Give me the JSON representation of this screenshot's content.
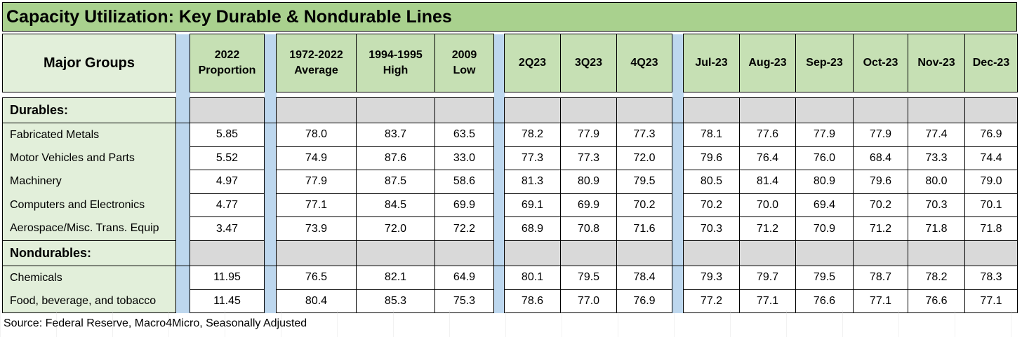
{
  "title": "Capacity Utilization: Key Durable & Nondurable Lines",
  "header": {
    "group_label": "Major Groups",
    "columns": [
      [
        "2022",
        "Proportion"
      ],
      [
        "1972-2022",
        "Average"
      ],
      [
        "1994-1995",
        "High"
      ],
      [
        "2009",
        "Low"
      ],
      [
        "2Q23"
      ],
      [
        "3Q23"
      ],
      [
        "4Q23"
      ],
      [
        "Jul-23"
      ],
      [
        "Aug-23"
      ],
      [
        "Sep-23"
      ],
      [
        "Oct-23"
      ],
      [
        "Nov-23"
      ],
      [
        "Dec-23"
      ]
    ]
  },
  "sections": [
    {
      "label": "Durables:",
      "rows": [
        {
          "name": "Fabricated Metals",
          "values": [
            "5.85",
            "78.0",
            "83.7",
            "63.5",
            "78.2",
            "77.9",
            "77.3",
            "78.1",
            "77.6",
            "77.9",
            "77.9",
            "77.4",
            "76.9"
          ]
        },
        {
          "name": "Motor Vehicles and Parts",
          "values": [
            "5.52",
            "74.9",
            "87.6",
            "33.0",
            "77.3",
            "77.3",
            "72.0",
            "79.6",
            "76.4",
            "76.0",
            "68.4",
            "73.3",
            "74.4"
          ]
        },
        {
          "name": "Machinery",
          "values": [
            "4.97",
            "77.9",
            "87.5",
            "58.6",
            "81.3",
            "80.9",
            "79.5",
            "80.5",
            "81.4",
            "80.9",
            "79.6",
            "80.0",
            "79.0"
          ]
        },
        {
          "name": "Computers and Electronics",
          "values": [
            "4.77",
            "77.1",
            "84.5",
            "69.9",
            "69.1",
            "69.9",
            "70.2",
            "70.2",
            "70.0",
            "69.4",
            "70.2",
            "70.3",
            "70.1"
          ]
        },
        {
          "name": "Aerospace/Misc. Trans. Equip",
          "values": [
            "3.47",
            "73.9",
            "72.0",
            "72.2",
            "68.9",
            "70.8",
            "71.6",
            "70.3",
            "71.2",
            "70.9",
            "71.2",
            "71.8",
            "71.8"
          ]
        }
      ]
    },
    {
      "label": "Nondurables:",
      "rows": [
        {
          "name": "Chemicals",
          "values": [
            "11.95",
            "76.5",
            "82.1",
            "64.9",
            "80.1",
            "79.5",
            "78.4",
            "79.3",
            "79.7",
            "79.5",
            "78.7",
            "78.2",
            "78.3"
          ]
        },
        {
          "name": "Food, beverage, and tobacco",
          "values": [
            "11.45",
            "80.4",
            "85.3",
            "75.3",
            "78.6",
            "77.0",
            "76.9",
            "77.2",
            "77.1",
            "76.6",
            "77.1",
            "76.6",
            "77.1"
          ]
        }
      ]
    }
  ],
  "source": "Source: Federal Reserve, Macro4Micro, Seasonally Adjusted",
  "colors": {
    "title_bg": "#a9d18e",
    "header_bg": "#c6e0b4",
    "label_bg": "#e2efda",
    "section_bg": "#d9d9d9",
    "separator": "#bdd7ee"
  }
}
